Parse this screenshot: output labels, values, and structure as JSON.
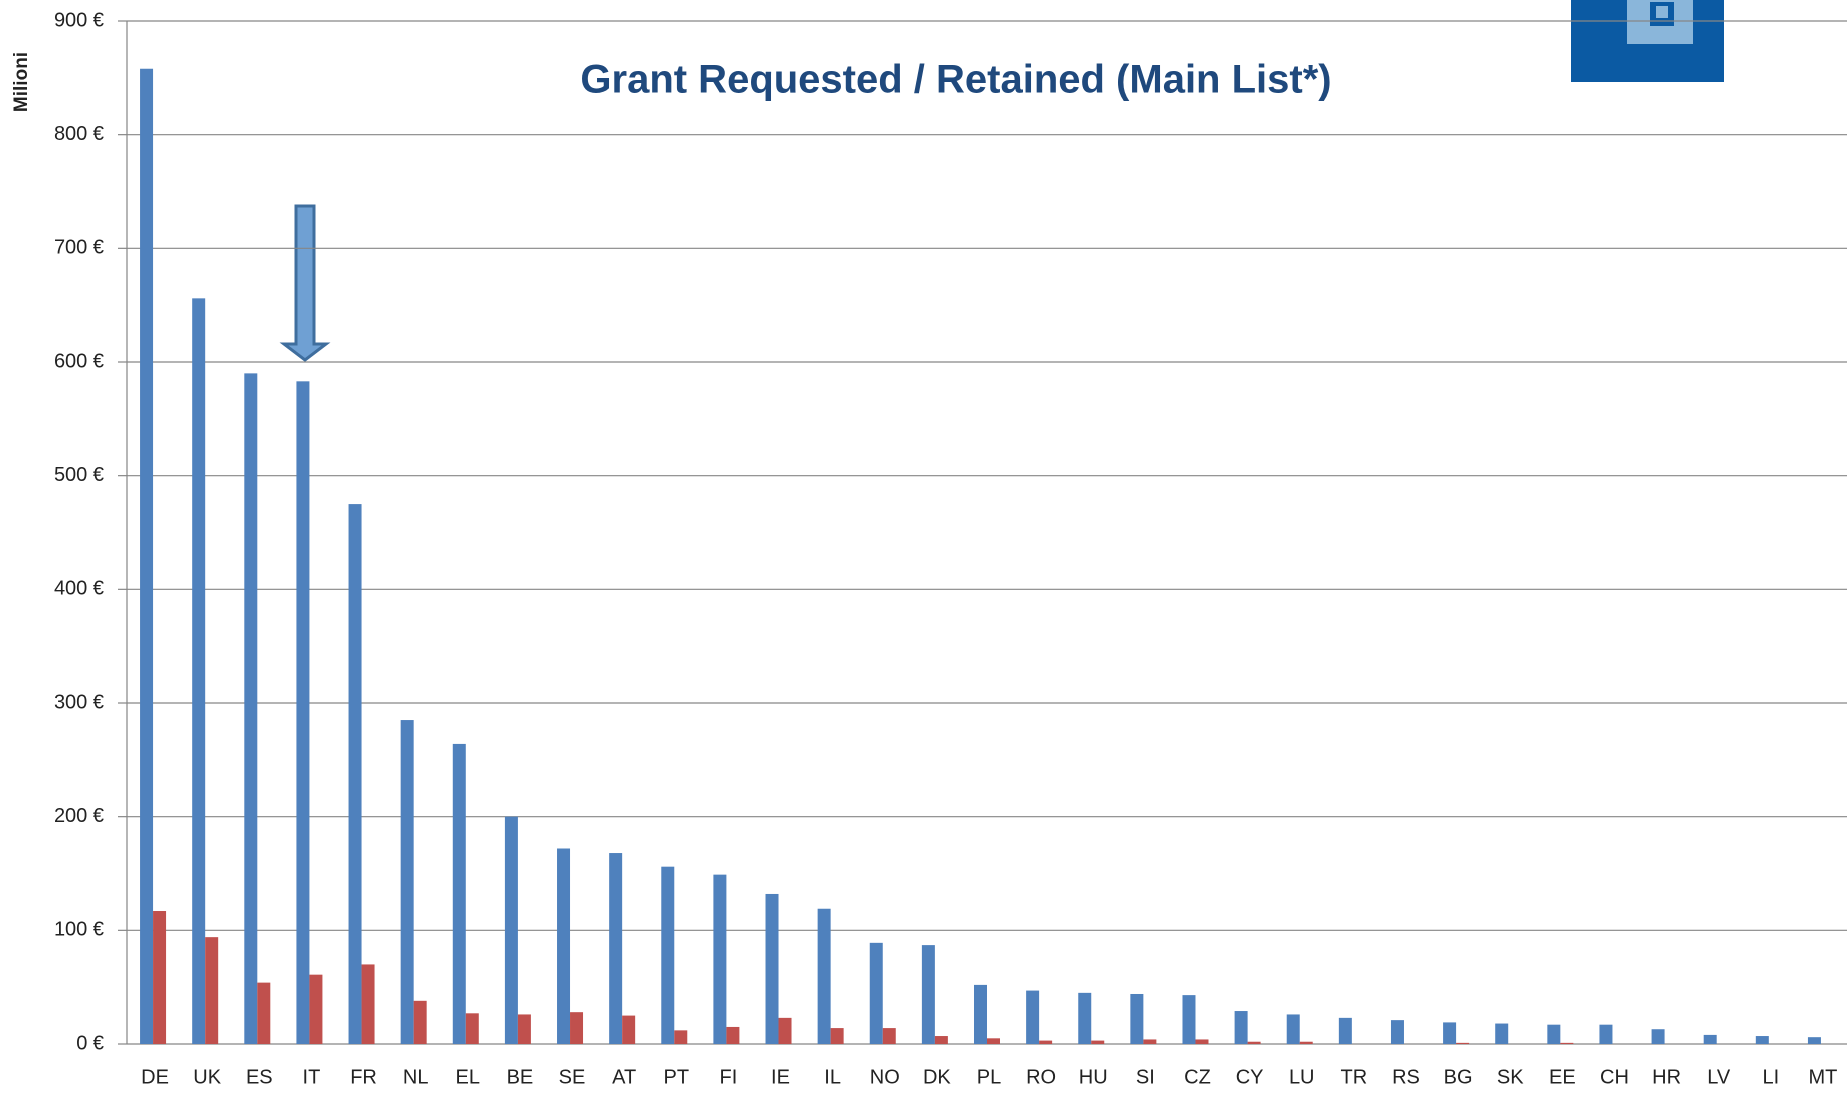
{
  "chart_data": {
    "type": "bar",
    "title": "Grant Requested / Retained (Main List*)",
    "y_label": "Milioni",
    "categories": [
      "DE",
      "UK",
      "ES",
      "IT",
      "FR",
      "NL",
      "EL",
      "BE",
      "SE",
      "AT",
      "PT",
      "FI",
      "IE",
      "IL",
      "NO",
      "DK",
      "PL",
      "RO",
      "HU",
      "SI",
      "CZ",
      "CY",
      "LU",
      "TR",
      "RS",
      "BG",
      "SK",
      "EE",
      "CH",
      "HR",
      "LV",
      "LI",
      "MT"
    ],
    "series": [
      {
        "color": "#4f81bd",
        "values": [
          858,
          656,
          590,
          583,
          475,
          285,
          264,
          200,
          172,
          168,
          156,
          149,
          132,
          119,
          89,
          87,
          52,
          47,
          45,
          44,
          43,
          29,
          26,
          23,
          21,
          19,
          18,
          17,
          17,
          13,
          8,
          7,
          6
        ]
      },
      {
        "color": "#c0504d",
        "values": [
          117,
          94,
          54,
          61,
          70,
          38,
          27,
          26,
          28,
          25,
          12,
          15,
          23,
          14,
          14,
          7,
          5,
          3,
          3,
          4,
          4,
          2,
          2,
          0,
          0,
          1,
          0,
          1,
          0,
          0,
          0,
          0,
          0
        ]
      }
    ],
    "ylim": [
      0,
      900
    ],
    "yticks": [
      {
        "value": 0,
        "label": "0 €"
      },
      {
        "value": 100,
        "label": "100 €"
      },
      {
        "value": 200,
        "label": "200 €"
      },
      {
        "value": 300,
        "label": "300 €"
      },
      {
        "value": 400,
        "label": "400 €"
      },
      {
        "value": 500,
        "label": "500 €"
      },
      {
        "value": 600,
        "label": "600 €"
      },
      {
        "value": 700,
        "label": "700 €"
      },
      {
        "value": 800,
        "label": "800 €"
      },
      {
        "value": 900,
        "label": "900 €"
      }
    ],
    "grid": true
  }
}
